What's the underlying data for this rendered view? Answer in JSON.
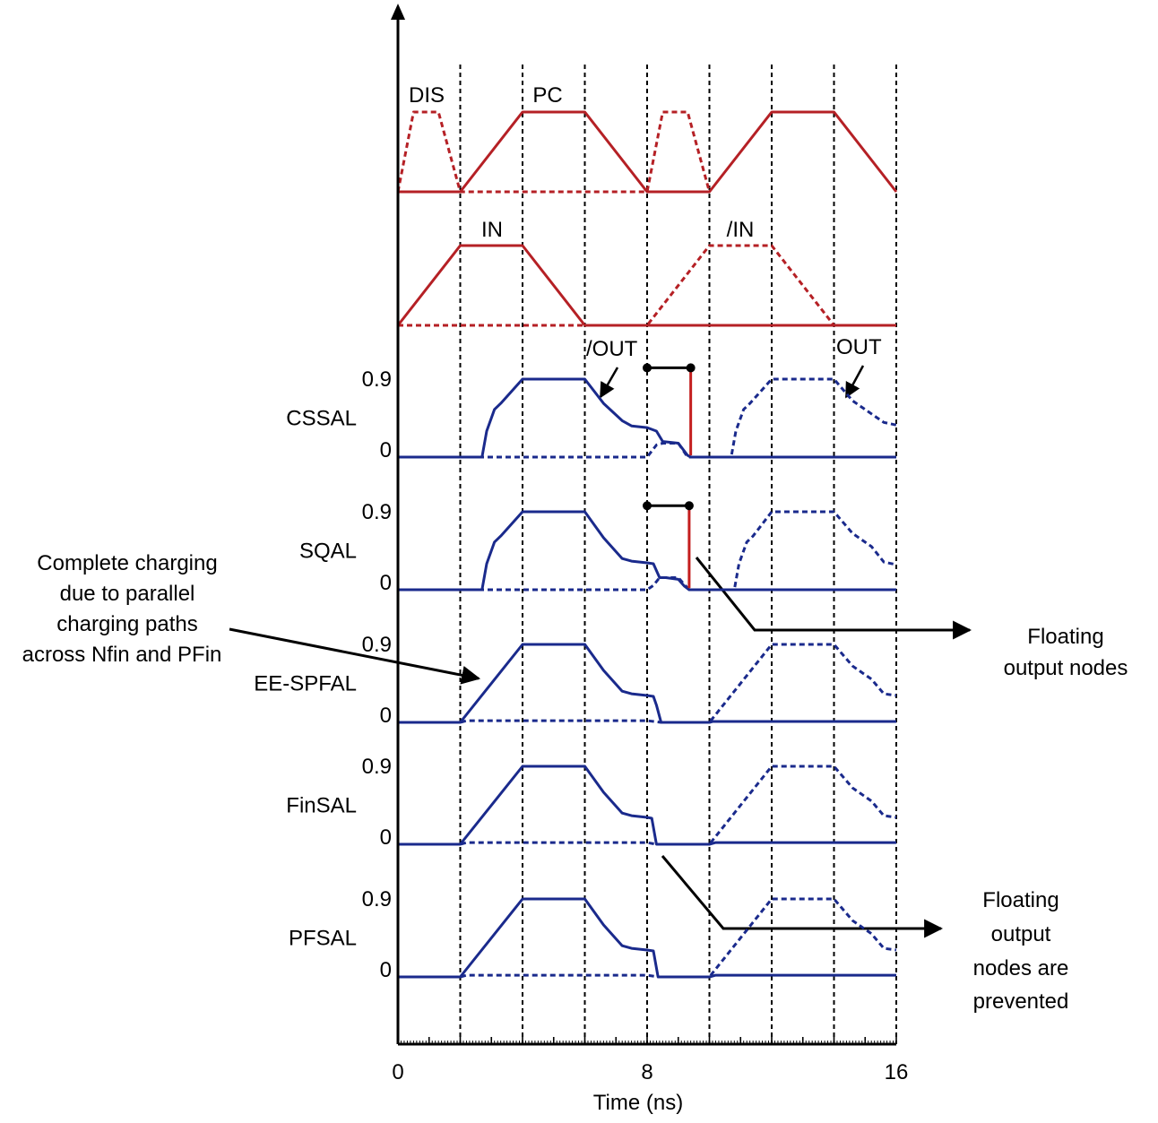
{
  "colors": {
    "clock": "#b52025",
    "output": "#1a2a8c",
    "axis": "#000000",
    "floating": "#c41e1e"
  },
  "chart_data": {
    "type": "line",
    "xlabel": "Time (ns)",
    "xlim": [
      0,
      16
    ],
    "x_ticks": [
      "0",
      "8",
      "16"
    ],
    "x_tick_values": [
      0,
      8,
      16
    ],
    "phase_lines": [
      2,
      4,
      6,
      8,
      10,
      12,
      14,
      16
    ],
    "grid": false,
    "clock_panel": {
      "series": [
        {
          "name": "DIS",
          "style": "dashed",
          "x": [
            0,
            0.5,
            1.3,
            2,
            8,
            8.5,
            9.3,
            10
          ],
          "y": [
            0,
            1,
            1,
            0,
            0,
            1,
            1,
            0
          ]
        },
        {
          "name": "PC",
          "style": "solid",
          "x": [
            0,
            2,
            4,
            6,
            8,
            10,
            12,
            14,
            16
          ],
          "y": [
            0,
            0,
            1,
            1,
            0,
            0,
            1,
            1,
            0
          ]
        }
      ]
    },
    "input_panel": {
      "series": [
        {
          "name": "IN",
          "style": "solid",
          "x": [
            0,
            2,
            4,
            6,
            16
          ],
          "y": [
            0,
            1,
            1,
            0,
            0
          ]
        },
        {
          "name": "/IN",
          "style": "dashed",
          "x": [
            0,
            8,
            10,
            12,
            14,
            16
          ],
          "y": [
            0,
            0,
            1,
            1,
            0,
            0
          ]
        }
      ]
    },
    "output_panels": [
      {
        "label": "CSSAL",
        "y_ticks": [
          "0.9",
          "0"
        ],
        "series": [
          {
            "name": "/OUT",
            "style": "solid",
            "x": [
              0,
              2.7,
              2.85,
              3.1,
              3.3,
              4,
              6,
              6.6,
              7.2,
              7.5,
              8,
              8.3,
              8.5,
              9,
              9.3,
              9.4,
              16
            ],
            "y": [
              0,
              0,
              0.3,
              0.55,
              0.62,
              0.9,
              0.9,
              0.62,
              0.42,
              0.36,
              0.34,
              0.3,
              0.18,
              0.16,
              0.02,
              0,
              0
            ]
          },
          {
            "name": "OUT",
            "style": "dashed",
            "x": [
              0,
              8,
              8.3,
              8.5,
              9,
              9.3,
              10.7,
              10.85,
              11.1,
              11.3,
              12,
              14,
              14.6,
              15.2,
              15.6,
              16
            ],
            "y": [
              0,
              0,
              0.14,
              0.16,
              0.16,
              0,
              0,
              0.3,
              0.55,
              0.62,
              0.9,
              0.9,
              0.65,
              0.5,
              0.4,
              0.37
            ]
          }
        ],
        "floating": {
          "x_start": 8,
          "x_end": 9.4,
          "y_top": 1.03,
          "y_end": 0.02
        }
      },
      {
        "label": "SQAL",
        "y_ticks": [
          "0.9",
          "0"
        ],
        "series": [
          {
            "name": "/OUT",
            "style": "solid",
            "x": [
              0,
              2.7,
              2.85,
              3.1,
              3.3,
              4,
              6,
              6.6,
              7.2,
              7.5,
              8,
              8.2,
              8.4,
              8.6,
              9,
              9.2,
              9.35,
              16
            ],
            "y": [
              0,
              0,
              0.3,
              0.55,
              0.62,
              0.9,
              0.9,
              0.6,
              0.36,
              0.33,
              0.31,
              0.3,
              0.14,
              0.14,
              0.12,
              0.04,
              0,
              0
            ]
          },
          {
            "name": "OUT",
            "style": "dashed",
            "x": [
              0,
              8,
              8.2,
              8.4,
              9,
              9.35,
              10.8,
              10.95,
              11.2,
              11.4,
              12,
              14,
              14.6,
              15.2,
              15.6,
              16
            ],
            "y": [
              0,
              0,
              0.05,
              0.14,
              0.14,
              0,
              0,
              0.3,
              0.55,
              0.62,
              0.9,
              0.9,
              0.65,
              0.5,
              0.32,
              0.29
            ]
          }
        ],
        "floating": {
          "x_start": 8,
          "x_end": 9.35,
          "y_top": 0.97,
          "y_end": 0.02
        }
      },
      {
        "label": "EE-SPFAL",
        "y_ticks": [
          "0.9",
          "0"
        ],
        "series": [
          {
            "name": "/OUT",
            "style": "solid",
            "x": [
              0,
              2,
              4,
              6,
              6.6,
              7.2,
              7.5,
              8,
              8.2,
              8.3,
              8.45,
              10,
              10.1,
              16
            ],
            "y": [
              0,
              0,
              0.9,
              0.9,
              0.6,
              0.36,
              0.33,
              0.31,
              0.3,
              0.2,
              0,
              0,
              0.01,
              0.01
            ]
          },
          {
            "name": "OUT",
            "style": "dashed",
            "x": [
              0,
              2,
              2.2,
              8,
              8.45,
              10,
              12,
              14,
              14.6,
              15.2,
              15.6,
              16
            ],
            "y": [
              0,
              0,
              0.02,
              0.02,
              0,
              0,
              0.9,
              0.9,
              0.65,
              0.5,
              0.33,
              0.31
            ]
          }
        ]
      },
      {
        "label": "FinSAL",
        "y_ticks": [
          "0.9",
          "0"
        ],
        "series": [
          {
            "name": "/OUT",
            "style": "solid",
            "x": [
              0,
              2,
              4,
              6,
              6.6,
              7.2,
              7.5,
              8,
              8.15,
              8.3,
              10,
              10.2,
              16
            ],
            "y": [
              0,
              0,
              0.9,
              0.9,
              0.6,
              0.36,
              0.33,
              0.31,
              0.3,
              0,
              0,
              0.02,
              0.02
            ]
          },
          {
            "name": "OUT",
            "style": "dashed",
            "x": [
              0,
              2,
              2.2,
              8,
              8.3,
              10,
              12,
              14,
              14.6,
              15.2,
              15.6,
              16
            ],
            "y": [
              0,
              0,
              0.02,
              0.02,
              0,
              0,
              0.9,
              0.9,
              0.65,
              0.5,
              0.33,
              0.31
            ]
          }
        ]
      },
      {
        "label": "PFSAL",
        "y_ticks": [
          "0.9",
          "0"
        ],
        "series": [
          {
            "name": "/OUT",
            "style": "solid",
            "x": [
              0,
              2,
              4,
              6,
              6.6,
              7.2,
              7.5,
              8,
              8.2,
              8.35,
              10,
              10.2,
              16
            ],
            "y": [
              0,
              0,
              0.9,
              0.9,
              0.6,
              0.36,
              0.33,
              0.31,
              0.3,
              0,
              0,
              0.02,
              0.02
            ]
          },
          {
            "name": "OUT",
            "style": "dashed",
            "x": [
              0,
              2,
              2.2,
              8,
              8.35,
              10,
              12,
              14,
              14.6,
              15.2,
              15.6,
              16
            ],
            "y": [
              0,
              0,
              0.02,
              0.02,
              0,
              0,
              0.9,
              0.9,
              0.65,
              0.5,
              0.33,
              0.31
            ]
          }
        ]
      }
    ],
    "annotations": {
      "out_label": "/OUT",
      "out_label_right": "OUT",
      "charging_note": [
        "Complete charging",
        "due to parallel",
        "charging paths",
        "across Nfin and PFin"
      ],
      "floating_nodes": [
        "Floating",
        "output nodes"
      ],
      "floating_prevented": [
        "Floating",
        "output",
        "nodes are",
        "prevented"
      ]
    }
  }
}
